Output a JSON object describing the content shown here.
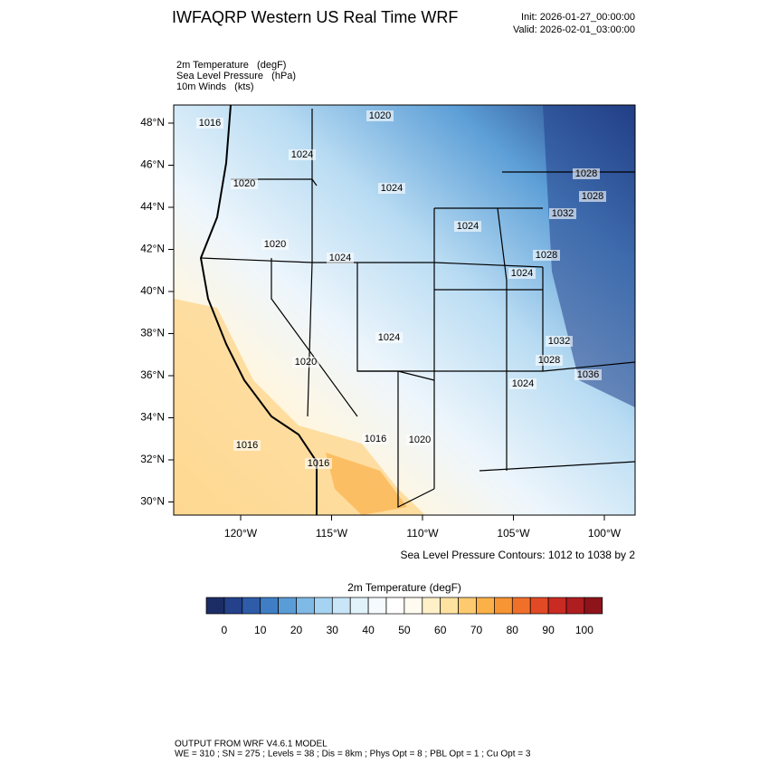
{
  "header": {
    "title": "IWFAQRP Western US Real Time WRF",
    "init": "Init: 2026-01-27_00:00:00",
    "valid": "Valid: 2026-02-01_03:00:00"
  },
  "fields": [
    "2m Temperature   (degF)",
    "Sea Level Pressure   (hPa)",
    "10m Winds   (kts)"
  ],
  "map": {
    "lat_labels": [
      "48°N",
      "46°N",
      "44°N",
      "42°N",
      "40°N",
      "38°N",
      "36°N",
      "34°N",
      "32°N",
      "30°N"
    ],
    "lon_labels": [
      "120°W",
      "115°W",
      "110°W",
      "105°W",
      "100°W"
    ],
    "contour_labels": [
      "1016",
      "1020",
      "1024",
      "1020",
      "1024",
      "1020",
      "1024",
      "1024",
      "1024",
      "1028",
      "1028",
      "1032",
      "1024",
      "1024",
      "1032",
      "1028",
      "1036",
      "1020",
      "1016",
      "1016",
      "1016",
      "1020",
      "1028"
    ],
    "contour_note": "Sea Level Pressure Contours: 1012 to 1038 by 2"
  },
  "colorbar": {
    "title": "2m Temperature  (degF)",
    "labels": [
      "0",
      "10",
      "20",
      "30",
      "40",
      "50",
      "60",
      "70",
      "80",
      "90",
      "100"
    ],
    "colors": [
      "#1c2d66",
      "#24418a",
      "#2e5ca8",
      "#3f7ec4",
      "#5a9cd6",
      "#7fb9e6",
      "#a6d3f2",
      "#c8e6f8",
      "#e2f2fb",
      "#f4fafe",
      "#ffffff",
      "#fffbf0",
      "#fff0c8",
      "#fee2a0",
      "#fdca6e",
      "#fbb148",
      "#f79433",
      "#f0702a",
      "#e24a25",
      "#c92b22",
      "#ae1d20",
      "#8c141a"
    ]
  },
  "footer": {
    "line1": "OUTPUT FROM WRF V4.6.1 MODEL",
    "line2": "WE = 310 ; SN = 275 ; Levels = 38 ; Dis = 8km ; Phys Opt = 8 ; PBL Opt = 1 ; Cu Opt = 3"
  }
}
